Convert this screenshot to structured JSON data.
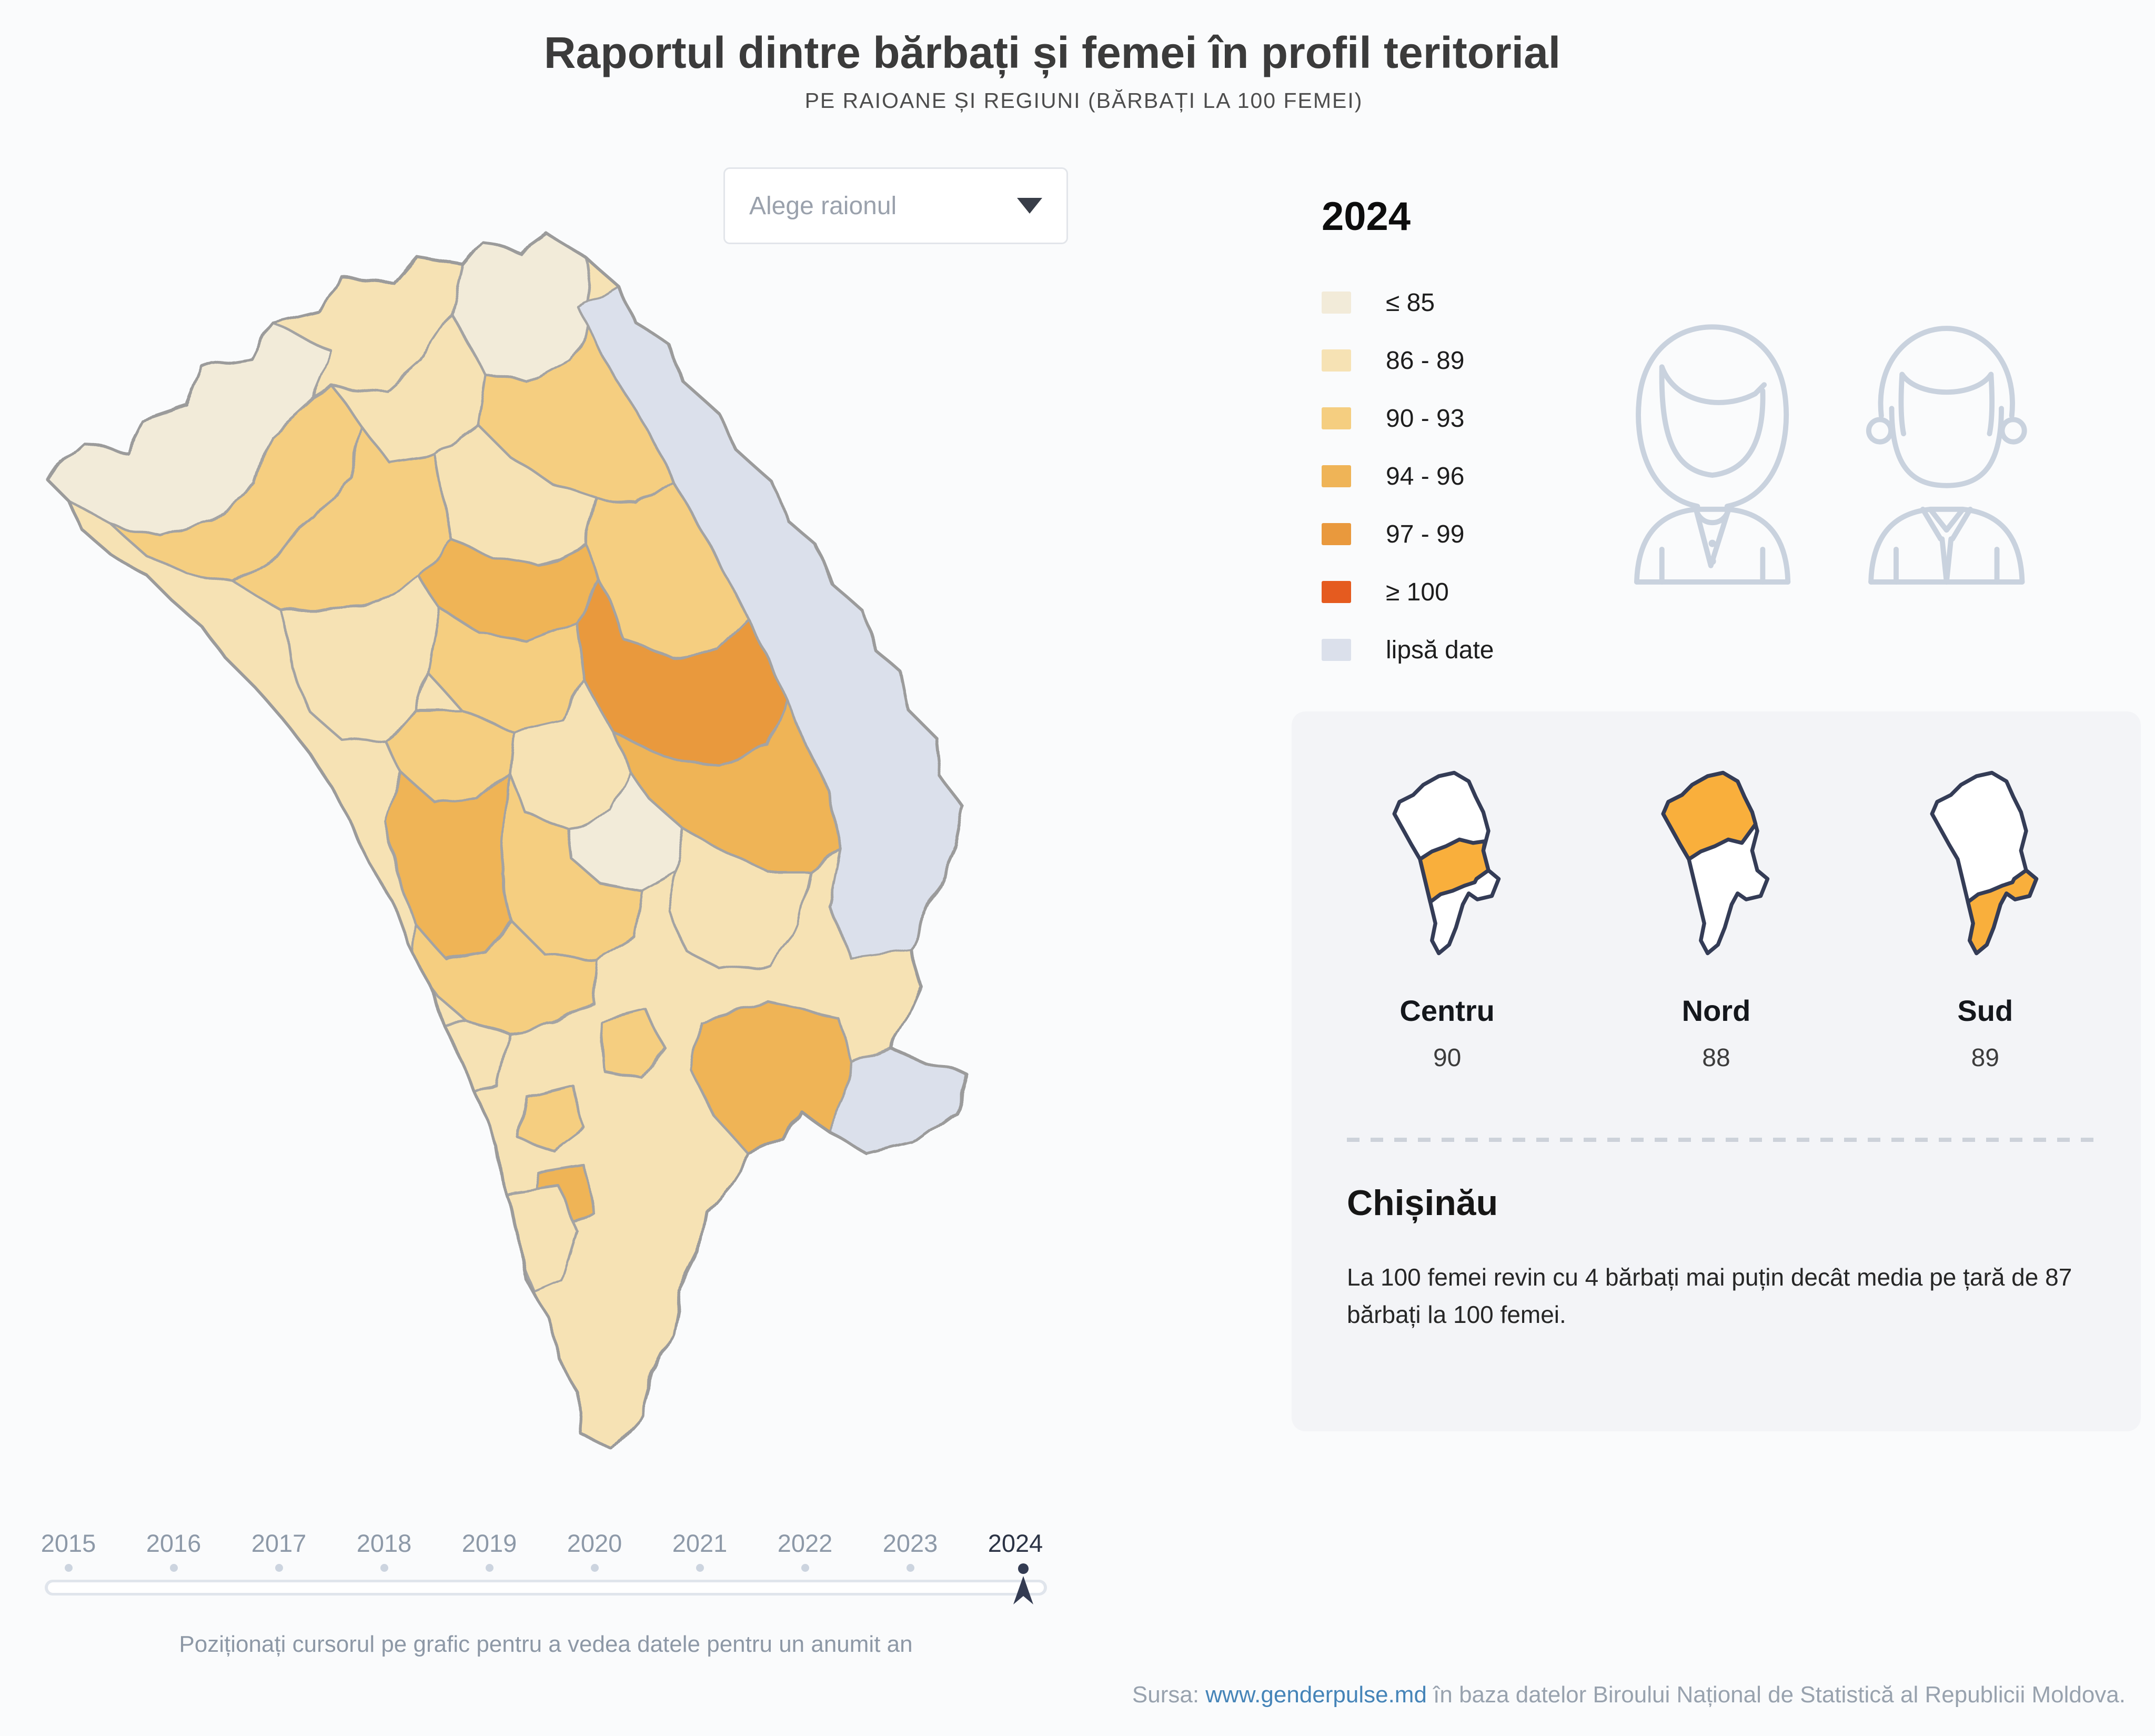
{
  "header": {
    "title": "Raportul dintre bărbați și femei în profil teritorial",
    "subtitle": "PE RAIOANE ȘI REGIUNI (BĂRBAȚI LA 100 FEMEI)"
  },
  "dropdown": {
    "placeholder": "Alege raionul"
  },
  "legend": {
    "year": "2024",
    "items": [
      {
        "label": "≤ 85",
        "color": "#F2EBD9"
      },
      {
        "label": "86 - 89",
        "color": "#F6E2B4"
      },
      {
        "label": "90 - 93",
        "color": "#F5CE80"
      },
      {
        "label": "94 - 96",
        "color": "#EFB457"
      },
      {
        "label": "97 - 99",
        "color": "#E9993D"
      },
      {
        "label": "≥ 100",
        "color": "#E55B1F"
      },
      {
        "label": "lipsă date",
        "color": "#DBE0EB"
      }
    ]
  },
  "regions": [
    {
      "name": "Centru",
      "value": "90"
    },
    {
      "name": "Nord",
      "value": "88"
    },
    {
      "name": "Sud",
      "value": "89"
    }
  ],
  "chisinau": {
    "heading": "Chișinău",
    "text": "La 100 femei revin cu 4 bărbați mai puțin decât media pe țară de 87 bărbați la 100 femei."
  },
  "timeline": {
    "years": [
      "2015",
      "2016",
      "2017",
      "2018",
      "2019",
      "2020",
      "2021",
      "2022",
      "2023",
      "2024"
    ],
    "selected": "2024",
    "hint": "Poziționați cursorul pe grafic pentru a vedea datele pentru un anumit an"
  },
  "source": {
    "prefix": "Sursa: ",
    "link": "www.genderpulse.md",
    "suffix": " în baza datelor Biroului Național de Statistică al Republicii Moldova."
  },
  "palette": {
    "c0": "#F2EBD9",
    "c1": "#F6E2B4",
    "c2": "#F5CE80",
    "c3": "#EFB457",
    "c4": "#E9993D",
    "c5": "#E55B1F",
    "c6": "#DBE0EB",
    "map_border": "#A3A3A3",
    "mini_outline": "#343C56",
    "mini_highlight": "#F9AF3C",
    "accent_dark": "#333B52",
    "person_line": "#C9D2DE"
  },
  "chart_data": {
    "type": "choropleth",
    "title": "Raportul dintre bărbați și femei în profil teritorial",
    "subtitle": "PE RAIOANE ȘI REGIUNI (BĂRBAȚI LA 100 FEMEI)",
    "unit": "bărbați la 100 femei",
    "selected_year": 2024,
    "timeline_years": [
      2015,
      2016,
      2017,
      2018,
      2019,
      2020,
      2021,
      2022,
      2023,
      2024
    ],
    "legend_bins": [
      {
        "label": "≤ 85",
        "color": "#F2EBD9"
      },
      {
        "label": "86 - 89",
        "color": "#F6E2B4"
      },
      {
        "label": "90 - 93",
        "color": "#F5CE80"
      },
      {
        "label": "94 - 96",
        "color": "#EFB457"
      },
      {
        "label": "97 - 99",
        "color": "#E9993D"
      },
      {
        "label": "≥ 100",
        "color": "#E55B1F"
      },
      {
        "label": "lipsă date",
        "color": "#DBE0EB"
      }
    ],
    "series": [
      {
        "name": "Centru",
        "values": [
          90
        ]
      },
      {
        "name": "Nord",
        "values": [
          88
        ]
      },
      {
        "name": "Sud",
        "values": [
          89
        ]
      }
    ],
    "national_average": 87,
    "annotations": [
      "Chișinău: La 100 femei revin cu 4 bărbați mai puțin decât media pe țară de 87 bărbați la 100 femei."
    ],
    "legend_position": "right",
    "grid": false
  }
}
